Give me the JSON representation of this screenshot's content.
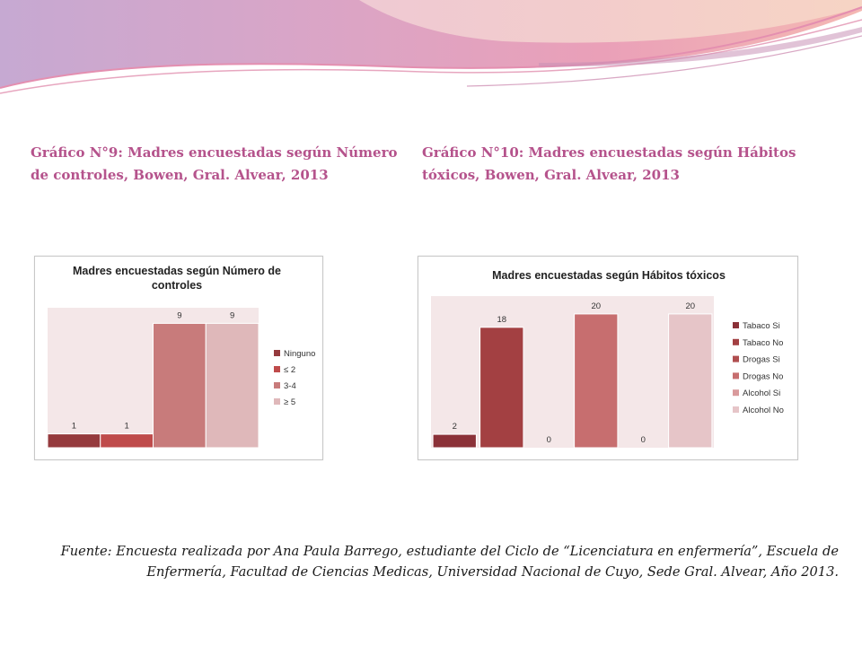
{
  "slide": {
    "heading_left": "Gráfico N°9: Madres encuestadas según Número de controles, Bowen, Gral. Alvear, 2013",
    "heading_right": "Gráfico N°10: Madres encuestadas según Hábitos tóxicos, Bowen, Gral. Alvear, 2013",
    "source_text": "Fuente: Encuesta realizada por Ana Paula Barrego, estudiante del Ciclo de “Licenciatura en enfermería”, Escuela de Enfermería, Facultad de Ciencias Medicas, Universidad Nacional de Cuyo, Sede Gral. Alvear, Año 2013.",
    "colors": {
      "heading": "#b5538c",
      "banner_pink": "#e59ab8",
      "banner_lavender": "#c6a9d2",
      "banner_peach": "#f7d6c9"
    }
  },
  "chart_data": [
    {
      "type": "bar",
      "title": "Madres encuestadas según Número de controles",
      "title_lines": [
        "Madres encuestadas según Número de",
        "controles"
      ],
      "categories": [
        "Ninguno",
        "≤ 2",
        "3-4",
        "≥ 5"
      ],
      "values": [
        1,
        1,
        9,
        9
      ],
      "data_labels": [
        "1",
        "1",
        "9",
        "9"
      ],
      "colors": [
        "#953a3d",
        "#bf4b4b",
        "#c87b7b",
        "#dfb8ba"
      ],
      "ylim": [
        0,
        10
      ],
      "legend_position": "right",
      "grid": false
    },
    {
      "type": "bar",
      "title": "Madres encuestadas según Hábitos tóxicos",
      "title_lines": [
        "Madres encuestadas según Hábitos tóxicos"
      ],
      "categories": [
        "Tabaco Si",
        "Tabaco No",
        "Drogas Si",
        "Drogas No",
        "Alcohol Si",
        "Alcohol No"
      ],
      "values": [
        2,
        18,
        0,
        20,
        0,
        20
      ],
      "data_labels": [
        "2",
        "18",
        "0",
        "20",
        "0",
        "20"
      ],
      "colors": [
        "#8b3138",
        "#a34042",
        "#b04e4f",
        "#c76e6f",
        "#d99a9c",
        "#e6c5c8"
      ],
      "ylim": [
        0,
        22
      ],
      "legend_position": "right",
      "grid": false
    }
  ]
}
